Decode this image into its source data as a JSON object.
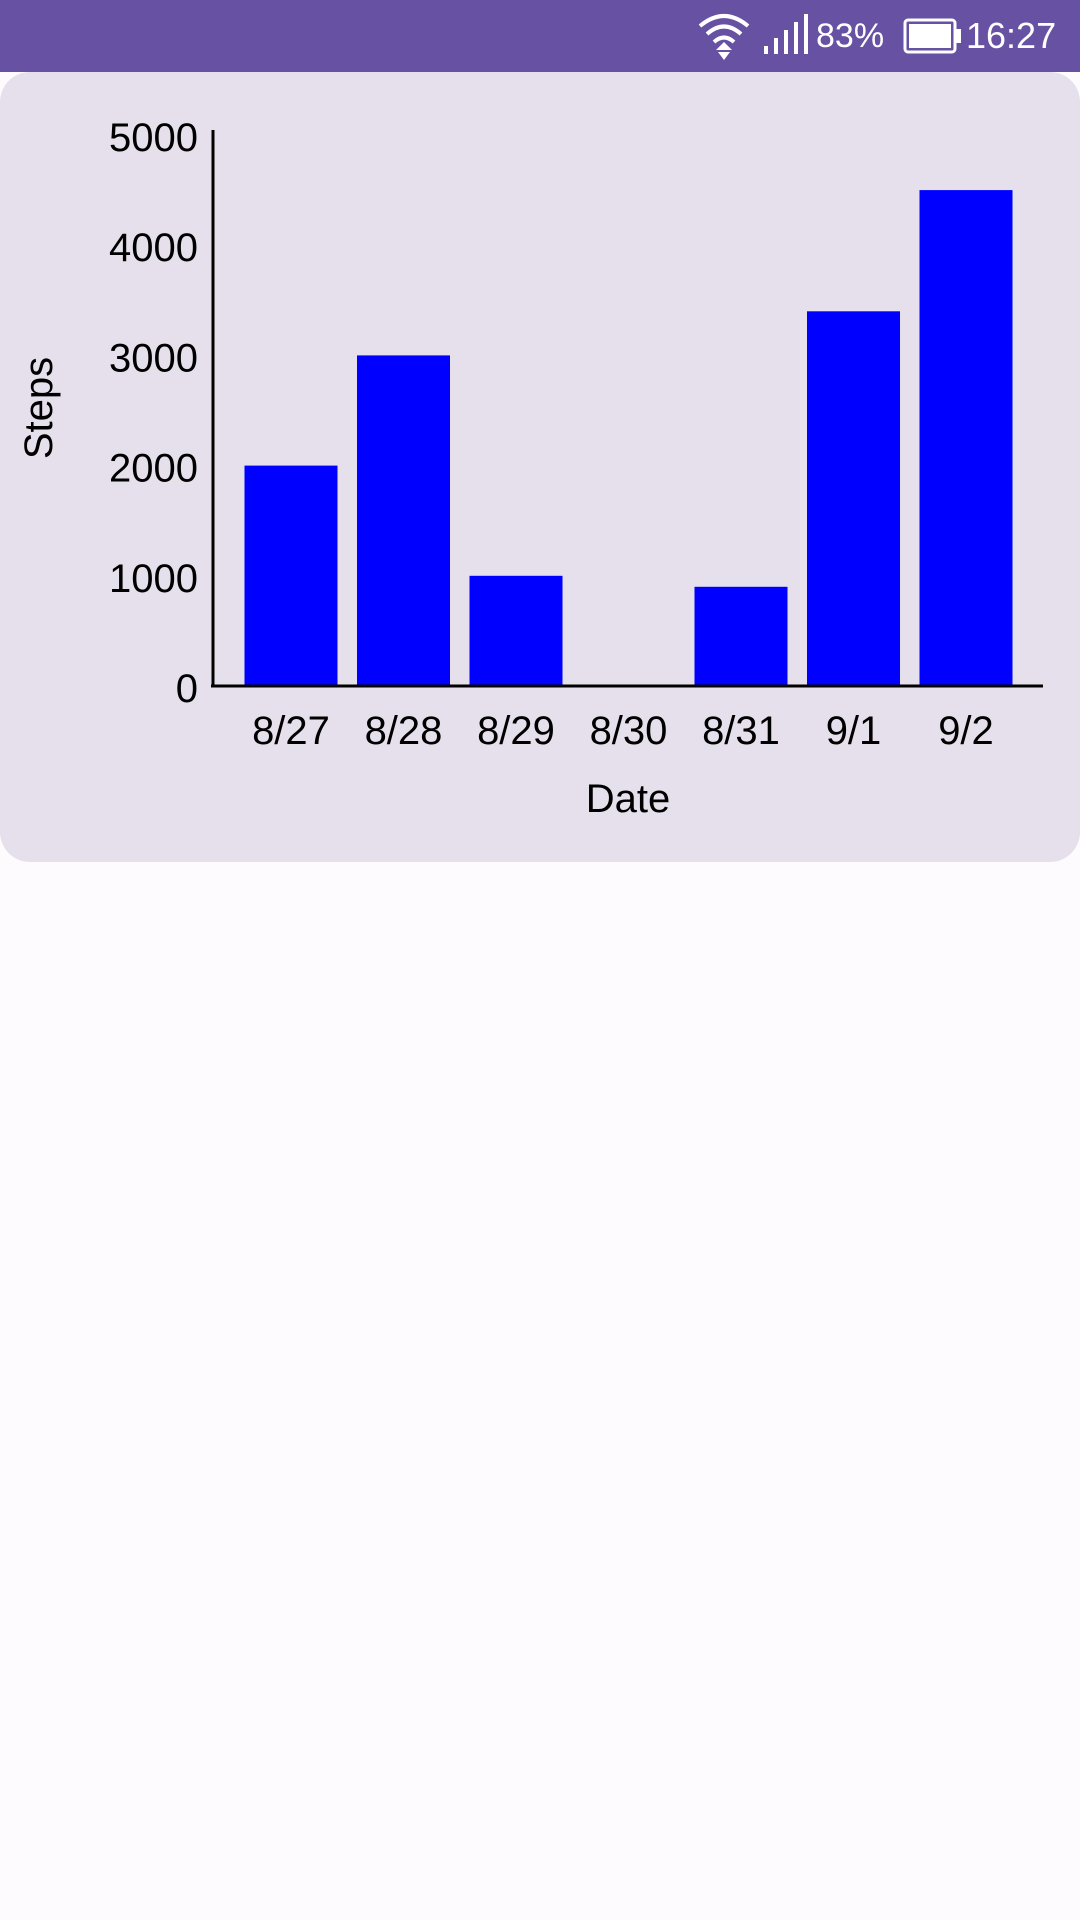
{
  "status_bar": {
    "background": "#6651a3",
    "icons": [
      "wifi-icon",
      "signal-icon",
      "battery-icon"
    ],
    "battery_percent": "83%",
    "time": "16:27"
  },
  "chart_data": {
    "type": "bar",
    "title": "",
    "xlabel": "Date",
    "ylabel": "Steps",
    "categories": [
      "8/27",
      "8/28",
      "8/29",
      "8/30",
      "8/31",
      "9/1",
      "9/2"
    ],
    "values": [
      2000,
      3000,
      1000,
      0,
      900,
      3400,
      4500
    ],
    "ylim": [
      0,
      5000
    ],
    "yticks": [
      "0",
      "1000",
      "2000",
      "3000",
      "4000",
      "5000"
    ],
    "bar_color": "#0000ff",
    "grid": false,
    "legend": "none"
  }
}
